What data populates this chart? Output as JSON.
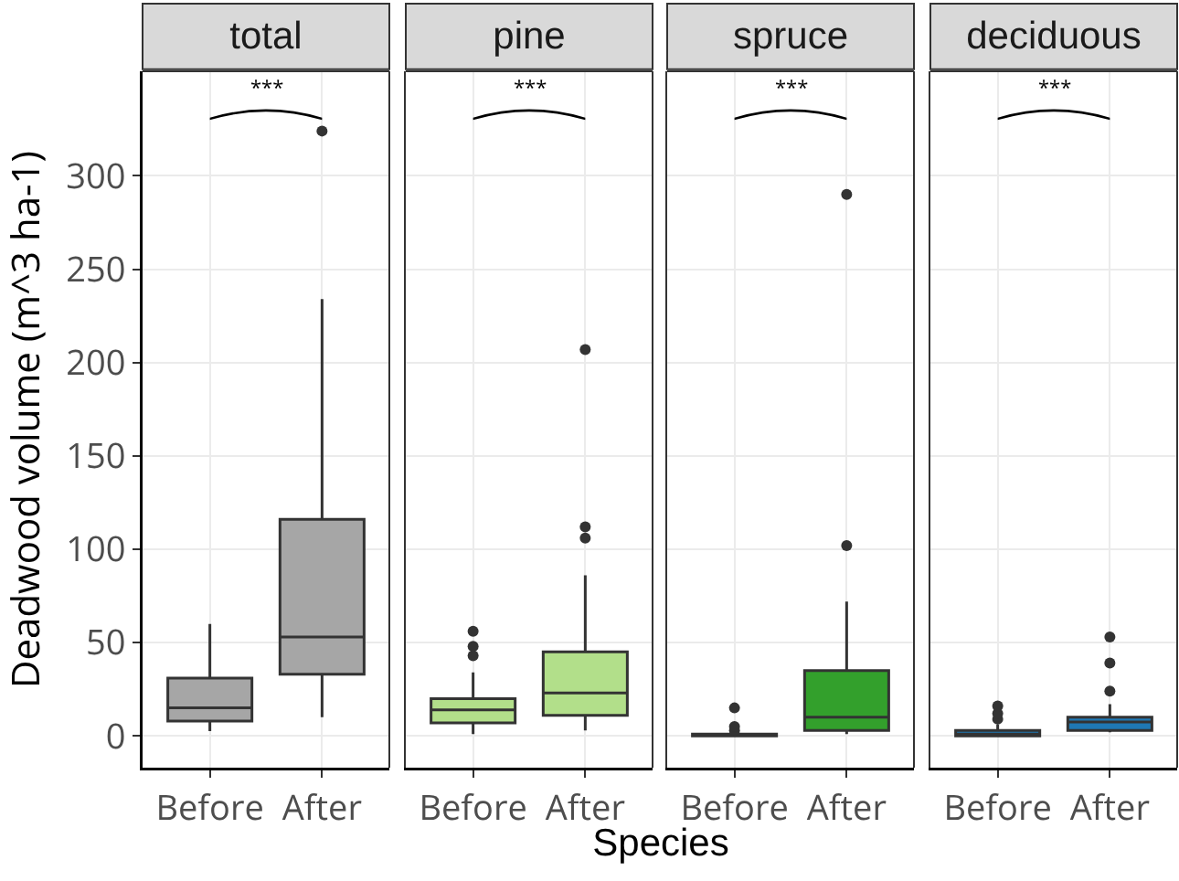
{
  "chart_data": [
    {
      "type": "box",
      "title": "total",
      "xlabel": "Species",
      "ylabel": "Deadwood volume (m^3 ha-1)",
      "categories": [
        "Before",
        "After"
      ],
      "ylim": [
        -17,
        356
      ],
      "yticks": [
        0,
        50,
        100,
        150,
        200,
        250,
        300
      ],
      "grid": true,
      "tick_labels": "y",
      "annotations": [
        "***"
      ],
      "series": [
        {
          "color": "#a6a6a6",
          "boxes": [
            {
              "low": 2.6,
              "q1": 8,
              "median": 15,
              "q3": 31,
              "high": 60
            },
            {
              "low": 10,
              "q1": 33,
              "median": 53,
              "q3": 116,
              "high": 234,
              "outliers": [
                324
              ]
            }
          ]
        }
      ]
    },
    {
      "type": "box",
      "title": "pine",
      "categories": [
        "Before",
        "After"
      ],
      "ylim": [
        -17,
        356
      ],
      "yticks": [
        0,
        50,
        100,
        150,
        200,
        250,
        300
      ],
      "grid": true,
      "tick_labels": "x",
      "annotations": [
        "***"
      ],
      "series": [
        {
          "color": "#b2df8a",
          "boxes": [
            {
              "low": 1,
              "q1": 7,
              "median": 14,
              "q3": 20,
              "high": 34,
              "outliers": [
                43,
                48,
                56
              ]
            },
            {
              "low": 3,
              "q1": 11,
              "median": 23,
              "q3": 45,
              "high": 86,
              "outliers": [
                106,
                112,
                207
              ]
            }
          ]
        }
      ]
    },
    {
      "type": "box",
      "title": "spruce",
      "categories": [
        "Before",
        "After"
      ],
      "ylim": [
        -17,
        356
      ],
      "yticks": [
        0,
        50,
        100,
        150,
        200,
        250,
        300
      ],
      "grid": true,
      "tick_labels": "x",
      "annotations": [
        "***"
      ],
      "series": [
        {
          "color": "#33a02c",
          "boxes": [
            {
              "low": 0,
              "q1": 0,
              "median": 0.5,
              "q3": 1,
              "high": 1,
              "outliers": [
                3,
                5,
                15
              ]
            },
            {
              "low": 1,
              "q1": 3,
              "median": 10,
              "q3": 35,
              "high": 72,
              "outliers": [
                102,
                290
              ]
            }
          ]
        }
      ]
    },
    {
      "type": "box",
      "title": "deciduous",
      "categories": [
        "Before",
        "After"
      ],
      "ylim": [
        -17,
        356
      ],
      "yticks": [
        0,
        50,
        100,
        150,
        200,
        250,
        300
      ],
      "grid": true,
      "tick_labels": "x",
      "annotations": [
        "***"
      ],
      "series": [
        {
          "color": "#1f78b4",
          "boxes": [
            {
              "low": 0,
              "q1": 0,
              "median": 1,
              "q3": 3,
              "high": 6,
              "outliers": [
                9,
                12,
                16
              ]
            },
            {
              "low": 2,
              "q1": 3,
              "median": 7.5,
              "q3": 10,
              "high": 17,
              "outliers": [
                24,
                39,
                53
              ]
            }
          ]
        }
      ]
    }
  ]
}
